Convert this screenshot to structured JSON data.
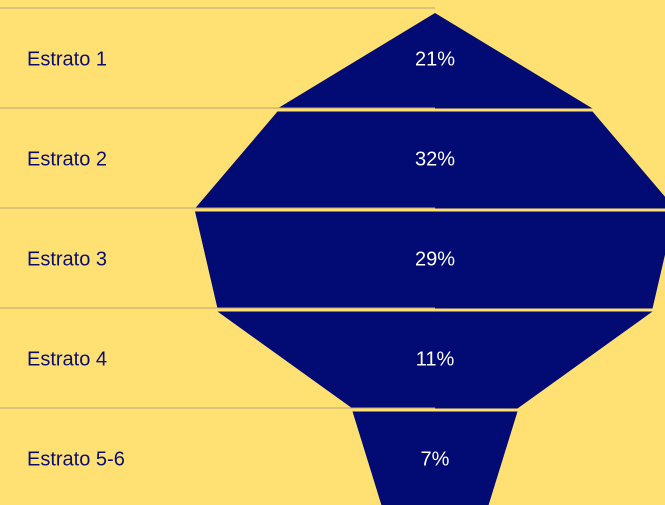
{
  "chart_data": {
    "type": "funnel",
    "categories": [
      "Estrato 1",
      "Estrato 2",
      "Estrato 3",
      "Estrato 4",
      "Estrato 5-6"
    ],
    "values": [
      21,
      32,
      29,
      11,
      7
    ],
    "value_labels": [
      "21%",
      "32%",
      "29%",
      "11%",
      "7%"
    ],
    "color": "#020a73"
  }
}
